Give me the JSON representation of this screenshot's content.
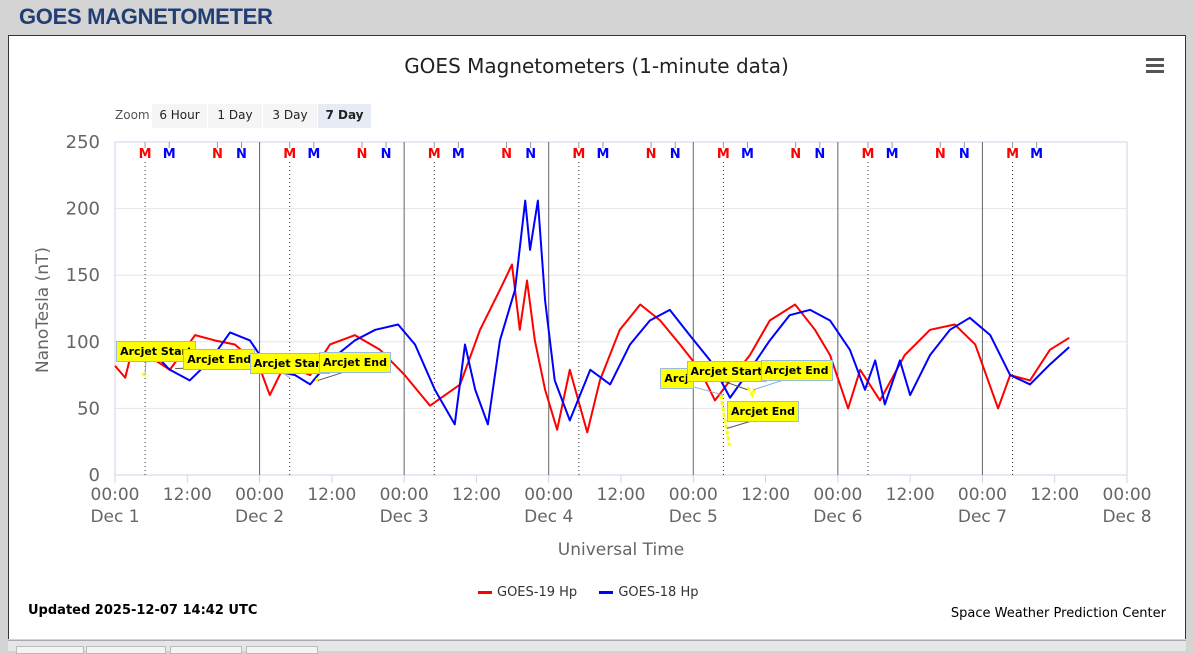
{
  "page_header": "GOES MAGNETOMETER",
  "zoom": {
    "label": "Zoom",
    "buttons": [
      "6 Hour",
      "1 Day",
      "3 Day",
      "7 Day"
    ],
    "selected": "7 Day"
  },
  "legend": [
    {
      "name": "GOES-19 Hp",
      "color": "#ff0000"
    },
    {
      "name": "GOES-18 Hp",
      "color": "#0000ff"
    }
  ],
  "updated": "Updated 2025-12-07 14:42 UTC",
  "credit": "Space Weather Prediction Center",
  "chart_data": {
    "type": "line",
    "title": "GOES Magnetometers (1-minute data)",
    "xlabel": "Universal Time",
    "ylabel": "NanoTesla (nT)",
    "x_unit": "hours since Dec 1 00:00 UTC",
    "xlim": [
      0,
      168
    ],
    "ylim": [
      0,
      250
    ],
    "yticks": [
      0,
      50,
      100,
      150,
      200,
      250
    ],
    "xticks": [
      {
        "h": 0,
        "time": "00:00",
        "date": "Dec 1"
      },
      {
        "h": 12,
        "time": "12:00",
        "date": ""
      },
      {
        "h": 24,
        "time": "00:00",
        "date": "Dec 2"
      },
      {
        "h": 36,
        "time": "12:00",
        "date": ""
      },
      {
        "h": 48,
        "time": "00:00",
        "date": "Dec 3"
      },
      {
        "h": 60,
        "time": "12:00",
        "date": ""
      },
      {
        "h": 72,
        "time": "00:00",
        "date": "Dec 4"
      },
      {
        "h": 84,
        "time": "12:00",
        "date": ""
      },
      {
        "h": 96,
        "time": "00:00",
        "date": "Dec 5"
      },
      {
        "h": 108,
        "time": "12:00",
        "date": ""
      },
      {
        "h": 120,
        "time": "00:00",
        "date": "Dec 6"
      },
      {
        "h": 132,
        "time": "12:00",
        "date": ""
      },
      {
        "h": 144,
        "time": "00:00",
        "date": "Dec 7"
      },
      {
        "h": 156,
        "time": "12:00",
        "date": ""
      },
      {
        "h": 168,
        "time": "00:00",
        "date": "Dec 8"
      }
    ],
    "grid": true,
    "legend_position": "bottom-center",
    "markers": [
      {
        "label": "M",
        "color": "#ff0000",
        "offset_h": 5.0
      },
      {
        "label": "M",
        "color": "#0000ff",
        "offset_h": 9.0
      },
      {
        "label": "N",
        "color": "#ff0000",
        "offset_h": 17.0
      },
      {
        "label": "N",
        "color": "#0000ff",
        "offset_h": 21.0
      }
    ],
    "series": [
      {
        "name": "GOES-19 Hp",
        "color": "#ff0000",
        "x": [
          0,
          1.7,
          3,
          9.1,
          13.3,
          16.6,
          19.9,
          23.9,
          25.7,
          28.2,
          32.4,
          35.7,
          39.8,
          44,
          48.1,
          52.3,
          54.8,
          57.3,
          60.6,
          63.9,
          65.9,
          67.2,
          68.4,
          69.7,
          71.4,
          73.4,
          75.5,
          78.4,
          80.5,
          83.8,
          87.2,
          90.5,
          93.8,
          97.1,
          99.6,
          102.1,
          105.4,
          108.7,
          112.9,
          116.2,
          118.7,
          121.7,
          123.7,
          127,
          131.1,
          135.3,
          139.4,
          142.8,
          146.6,
          148.6,
          151.9,
          155.2,
          158.4
        ],
        "y": [
          82,
          73,
          97,
          79,
          105,
          101,
          98,
          82,
          60,
          83,
          75,
          98,
          105,
          94,
          75,
          52,
          60,
          68,
          109,
          139,
          158,
          109,
          146,
          101,
          64,
          34,
          79,
          32,
          71,
          109,
          128,
          116,
          98,
          79,
          56,
          71,
          90,
          116,
          128,
          109,
          90,
          50,
          79,
          56,
          90,
          109,
          113,
          98,
          50,
          75,
          71,
          94,
          103
        ]
      },
      {
        "name": "GOES-18 Hp",
        "color": "#0000ff",
        "x": [
          5,
          9.1,
          12.4,
          15.8,
          19.1,
          22.4,
          25.7,
          29.9,
          32.4,
          35.7,
          39.8,
          43.2,
          47,
          49.8,
          53.1,
          56.4,
          58.1,
          59.8,
          61.9,
          63.9,
          66.4,
          68.1,
          68.9,
          70.2,
          71.4,
          73,
          75.5,
          78.9,
          82.2,
          85.5,
          88.8,
          92.1,
          95.4,
          98.8,
          102.1,
          105.4,
          108.7,
          112,
          115.4,
          118.7,
          122,
          124.5,
          126.2,
          127.8,
          130.3,
          132,
          135.3,
          138.6,
          141.9,
          145.3,
          148.6,
          151.9,
          155.2,
          158.4
        ],
        "y": [
          98,
          79,
          71,
          86,
          107,
          101,
          79,
          75,
          68,
          86,
          101,
          109,
          113,
          98,
          64,
          38,
          98,
          64,
          38,
          101,
          139,
          206,
          169,
          206,
          131,
          71,
          41,
          79,
          68,
          98,
          116,
          124,
          105,
          86,
          58,
          79,
          101,
          120,
          124,
          116,
          94,
          64,
          86,
          53,
          86,
          60,
          90,
          109,
          118,
          105,
          75,
          68,
          83,
          96
        ]
      }
    ],
    "arcjet_segments": [
      {
        "x": [
          4.5,
          5.5
        ],
        "y": [
          76,
          74
        ]
      },
      {
        "x": [
          33.3,
          34.2
        ],
        "y": [
          72,
          70
        ]
      },
      {
        "x": [
          100.6,
          101,
          101.5,
          101.8,
          102
        ],
        "y": [
          60,
          48,
          35,
          28,
          22
        ]
      },
      {
        "x": [
          105,
          105.8,
          106.3
        ],
        "y": [
          66,
          60,
          66
        ]
      }
    ],
    "annotations": [
      {
        "text": "Arcjet Start",
        "h": 5,
        "v": 75
      },
      {
        "text": "Arcjet End",
        "h": 10,
        "v": 80
      },
      {
        "text": "Arcjet Start",
        "h": 29,
        "v": 73
      },
      {
        "text": "Arcjet End",
        "h": 33.7,
        "v": 71
      },
      {
        "text": "Arcjet Start",
        "h": 101,
        "v": 60
      },
      {
        "text": "Arcjet Start",
        "h": 105,
        "v": 64
      },
      {
        "text": "Arcjet End",
        "h": 106,
        "v": 64
      },
      {
        "text": "Arcjet End",
        "h": 101.6,
        "v": 35
      }
    ]
  }
}
